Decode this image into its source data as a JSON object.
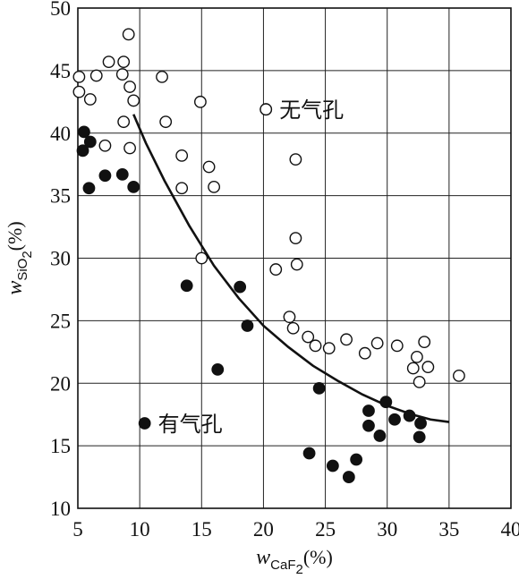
{
  "chart_data": {
    "type": "scatter",
    "xlim": [
      5,
      40
    ],
    "ylim": [
      10,
      50
    ],
    "x_ticks": [
      5,
      10,
      15,
      20,
      25,
      30,
      35,
      40
    ],
    "y_ticks": [
      10,
      15,
      20,
      25,
      30,
      35,
      40,
      45,
      50
    ],
    "grid": true,
    "xlabel": {
      "var": "w",
      "sub": "CaF",
      "subsub": "2",
      "unit": "(%)"
    },
    "ylabel": {
      "var": "w",
      "sub": "SiO",
      "subsub": "2",
      "unit": "(%)"
    },
    "series": [
      {
        "name": "无气孔",
        "marker": "open-circle",
        "points": [
          [
            5.1,
            44.5
          ],
          [
            5.1,
            43.3
          ],
          [
            6.0,
            42.7
          ],
          [
            6.5,
            44.6
          ],
          [
            7.5,
            45.7
          ],
          [
            8.7,
            45.7
          ],
          [
            8.6,
            44.7
          ],
          [
            9.1,
            47.9
          ],
          [
            9.2,
            43.7
          ],
          [
            9.5,
            42.6
          ],
          [
            8.7,
            40.9
          ],
          [
            9.2,
            38.8
          ],
          [
            7.2,
            39.0
          ],
          [
            11.8,
            44.5
          ],
          [
            12.1,
            40.9
          ],
          [
            13.4,
            38.2
          ],
          [
            13.4,
            35.6
          ],
          [
            14.9,
            42.5
          ],
          [
            15.6,
            37.3
          ],
          [
            16.0,
            35.7
          ],
          [
            15.0,
            30.0
          ],
          [
            20.2,
            41.9
          ],
          [
            22.6,
            37.9
          ],
          [
            22.6,
            31.6
          ],
          [
            22.7,
            29.5
          ],
          [
            21.0,
            29.1
          ],
          [
            22.1,
            25.3
          ],
          [
            22.4,
            24.4
          ],
          [
            23.6,
            23.7
          ],
          [
            24.2,
            23.0
          ],
          [
            25.3,
            22.8
          ],
          [
            26.7,
            23.5
          ],
          [
            28.2,
            22.4
          ],
          [
            29.2,
            23.2
          ],
          [
            30.8,
            23.0
          ],
          [
            32.1,
            21.2
          ],
          [
            32.4,
            22.1
          ],
          [
            32.6,
            20.1
          ],
          [
            33.0,
            23.3
          ],
          [
            33.3,
            21.3
          ],
          [
            35.8,
            20.6
          ]
        ]
      },
      {
        "name": "有气孔",
        "marker": "filled-circle",
        "points": [
          [
            5.5,
            40.1
          ],
          [
            5.4,
            38.6
          ],
          [
            6.0,
            39.3
          ],
          [
            5.9,
            35.6
          ],
          [
            7.2,
            36.6
          ],
          [
            8.6,
            36.7
          ],
          [
            9.5,
            35.7
          ],
          [
            13.8,
            27.8
          ],
          [
            18.1,
            27.7
          ],
          [
            18.7,
            24.6
          ],
          [
            16.3,
            21.1
          ],
          [
            24.5,
            19.6
          ],
          [
            23.7,
            14.4
          ],
          [
            25.6,
            13.4
          ],
          [
            26.9,
            12.5
          ],
          [
            27.5,
            13.9
          ],
          [
            28.5,
            16.6
          ],
          [
            28.5,
            17.8
          ],
          [
            29.4,
            15.8
          ],
          [
            29.9,
            18.5
          ],
          [
            30.6,
            17.1
          ],
          [
            31.8,
            17.4
          ],
          [
            32.7,
            16.8
          ],
          [
            32.6,
            15.7
          ]
        ]
      }
    ],
    "boundary_curve": [
      [
        9.5,
        41.5
      ],
      [
        10.5,
        39.2
      ],
      [
        12.0,
        36.2
      ],
      [
        14.0,
        32.6
      ],
      [
        16.0,
        29.4
      ],
      [
        18.0,
        26.8
      ],
      [
        20.0,
        24.6
      ],
      [
        22.0,
        22.9
      ],
      [
        24.0,
        21.4
      ],
      [
        26.0,
        20.2
      ],
      [
        28.0,
        19.1
      ],
      [
        30.0,
        18.2
      ],
      [
        32.0,
        17.5
      ],
      [
        33.5,
        17.1
      ],
      [
        35.0,
        16.9
      ]
    ],
    "annotations": [
      {
        "text": "无气孔",
        "marker": "open-circle",
        "at": [
          20.2,
          41.9
        ]
      },
      {
        "text": "有气孔",
        "marker": "filled-circle",
        "at": [
          10.4,
          16.8
        ]
      }
    ]
  }
}
